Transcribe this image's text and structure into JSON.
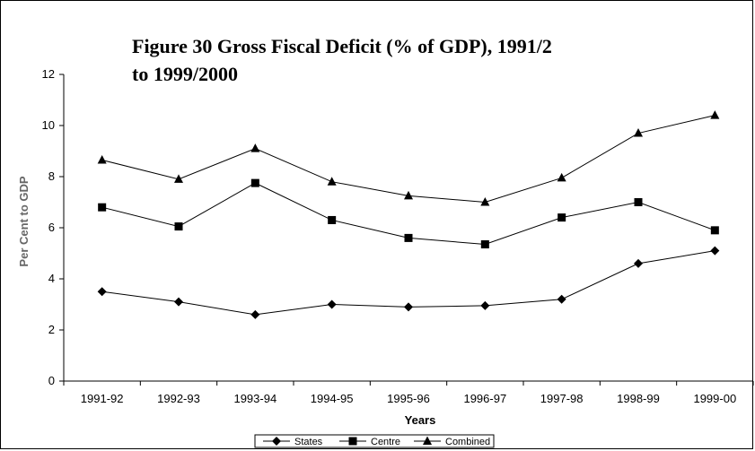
{
  "chart_data": {
    "type": "line",
    "title": "Figure 30 Gross Fiscal Deficit (% of GDP), 1991/2 to 1999/2000",
    "title_lines": [
      "Figure 30 Gross Fiscal Deficit (% of GDP), 1991/2",
      "to 1999/2000"
    ],
    "xlabel": "Years",
    "ylabel": "Per Cent to GDP",
    "categories": [
      "1991-92",
      "1992-93",
      "1993-94",
      "1994-95",
      "1995-96",
      "1996-97",
      "1997-98",
      "1998-99",
      "1999-00"
    ],
    "ylim": [
      0,
      12
    ],
    "yticks": [
      "0",
      "2",
      "4",
      "6",
      "8",
      "10",
      "12"
    ],
    "grid": false,
    "legend_position": "bottom",
    "series": [
      {
        "name": "States",
        "marker": "diamond",
        "values": [
          3.5,
          3.1,
          2.6,
          3.0,
          2.9,
          2.95,
          3.2,
          4.6,
          5.1
        ]
      },
      {
        "name": "Centre",
        "marker": "square",
        "values": [
          6.8,
          6.05,
          7.75,
          6.3,
          5.6,
          5.35,
          6.4,
          7.0,
          5.9
        ]
      },
      {
        "name": "Combined",
        "marker": "triangle",
        "values": [
          8.65,
          7.9,
          9.1,
          7.8,
          7.25,
          7.0,
          7.95,
          9.7,
          10.4
        ]
      }
    ],
    "colors": {
      "line": "#000000",
      "marker": "#000000"
    }
  }
}
